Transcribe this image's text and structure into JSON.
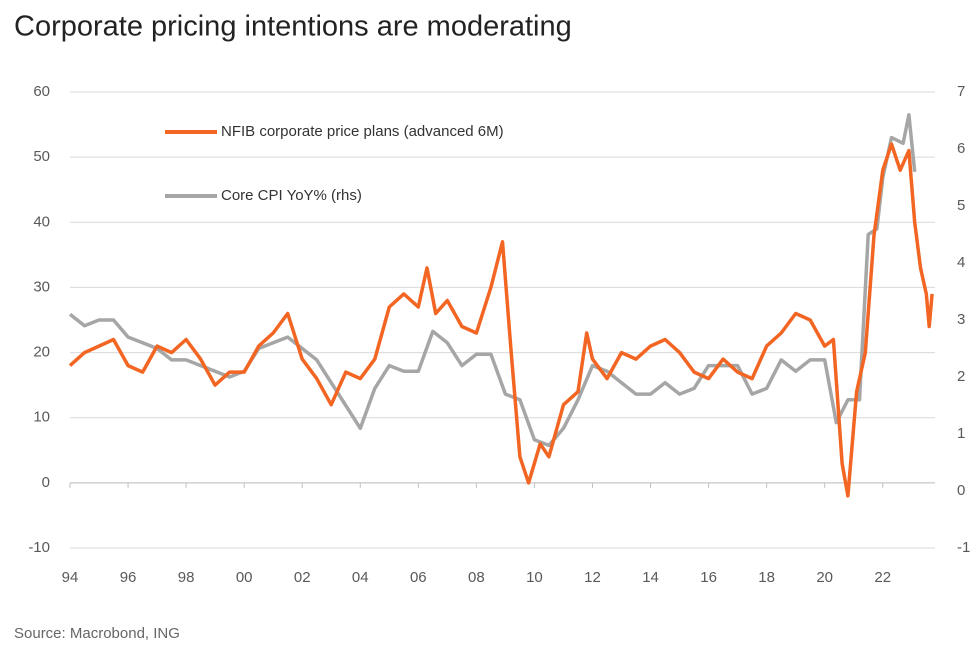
{
  "chart_data": {
    "type": "line",
    "title": "Corporate pricing intentions are moderating",
    "source": "Source: Macrobond, ING",
    "xlim": [
      1994,
      2023.8
    ],
    "xticks": [
      {
        "value": 1994,
        "label": "94"
      },
      {
        "value": 1996,
        "label": "96"
      },
      {
        "value": 1998,
        "label": "98"
      },
      {
        "value": 2000,
        "label": "00"
      },
      {
        "value": 2002,
        "label": "02"
      },
      {
        "value": 2004,
        "label": "04"
      },
      {
        "value": 2006,
        "label": "06"
      },
      {
        "value": 2008,
        "label": "08"
      },
      {
        "value": 2010,
        "label": "10"
      },
      {
        "value": 2012,
        "label": "12"
      },
      {
        "value": 2014,
        "label": "14"
      },
      {
        "value": 2016,
        "label": "16"
      },
      {
        "value": 2018,
        "label": "18"
      },
      {
        "value": 2020,
        "label": "20"
      },
      {
        "value": 2022,
        "label": "22"
      }
    ],
    "ylim": [
      -10,
      60
    ],
    "yticks": [
      -10,
      0,
      10,
      20,
      30,
      40,
      50,
      60
    ],
    "y2lim": [
      -1,
      7
    ],
    "y2ticks": [
      -1,
      0,
      1,
      2,
      3,
      4,
      5,
      6,
      7
    ],
    "grid": true,
    "legend": "top-left",
    "series": [
      {
        "name": "NFIB corporate price plans (advanced 6M)",
        "color": "#f26522",
        "x": [
          1994,
          1994.5,
          1995,
          1995.5,
          1996,
          1996.5,
          1997,
          1997.5,
          1998,
          1998.5,
          1999,
          1999.5,
          2000,
          2000.5,
          2001,
          2001.5,
          2002,
          2002.5,
          2003,
          2003.5,
          2004,
          2004.5,
          2005,
          2005.5,
          2006,
          2006.3,
          2006.6,
          2007,
          2007.5,
          2008,
          2008.5,
          2008.9,
          2009.2,
          2009.5,
          2009.8,
          2010.2,
          2010.5,
          2011,
          2011.5,
          2011.8,
          2012,
          2012.5,
          2013,
          2013.5,
          2014,
          2014.5,
          2015,
          2015.5,
          2016,
          2016.5,
          2017,
          2017.5,
          2018,
          2018.5,
          2019,
          2019.5,
          2020,
          2020.3,
          2020.6,
          2020.8,
          2021.1,
          2021.4,
          2021.7,
          2022,
          2022.3,
          2022.6,
          2022.9,
          2023.1,
          2023.3,
          2023.5,
          2023.6,
          2023.7
        ],
        "values": [
          18,
          20,
          21,
          22,
          18,
          17,
          21,
          20,
          22,
          19,
          15,
          17,
          17,
          21,
          23,
          26,
          19,
          16,
          12,
          17,
          16,
          19,
          27,
          29,
          27,
          33,
          26,
          28,
          24,
          23,
          30,
          37,
          20,
          4,
          0,
          6,
          4,
          12,
          14,
          23,
          19,
          16,
          20,
          19,
          21,
          22,
          20,
          17,
          16,
          19,
          17,
          16,
          21,
          23,
          26,
          25,
          21,
          22,
          3,
          -2,
          14,
          20,
          38,
          48,
          52,
          48,
          51,
          40,
          33,
          29,
          24,
          29
        ]
      },
      {
        "name": "Core CPI YoY% (rhs)",
        "color": "#a6a6a6",
        "axis": "y2",
        "x": [
          1994,
          1994.5,
          1995,
          1995.5,
          1996,
          1996.5,
          1997,
          1997.5,
          1998,
          1998.5,
          1999,
          1999.5,
          2000,
          2000.5,
          2001,
          2001.5,
          2002,
          2002.5,
          2003,
          2003.5,
          2004,
          2004.5,
          2005,
          2005.5,
          2006,
          2006.5,
          2007,
          2007.5,
          2008,
          2008.5,
          2009,
          2009.5,
          2010,
          2010.5,
          2011,
          2011.5,
          2012,
          2012.5,
          2013,
          2013.5,
          2014,
          2014.5,
          2015,
          2015.5,
          2016,
          2016.5,
          2017,
          2017.5,
          2018,
          2018.5,
          2019,
          2019.5,
          2020,
          2020.4,
          2020.8,
          2021.2,
          2021.5,
          2021.8,
          2022,
          2022.3,
          2022.7,
          2022.9,
          2023.1
        ],
        "values": [
          3.1,
          2.9,
          3.0,
          3.0,
          2.7,
          2.6,
          2.5,
          2.3,
          2.3,
          2.2,
          2.1,
          2.0,
          2.1,
          2.5,
          2.6,
          2.7,
          2.5,
          2.3,
          1.9,
          1.5,
          1.1,
          1.8,
          2.2,
          2.1,
          2.1,
          2.8,
          2.6,
          2.2,
          2.4,
          2.4,
          1.7,
          1.6,
          0.9,
          0.8,
          1.1,
          1.6,
          2.2,
          2.1,
          1.9,
          1.7,
          1.7,
          1.9,
          1.7,
          1.8,
          2.2,
          2.2,
          2.2,
          1.7,
          1.8,
          2.3,
          2.1,
          2.3,
          2.3,
          1.2,
          1.6,
          1.6,
          4.5,
          4.6,
          5.5,
          6.2,
          6.1,
          6.6,
          5.6
        ]
      }
    ]
  }
}
